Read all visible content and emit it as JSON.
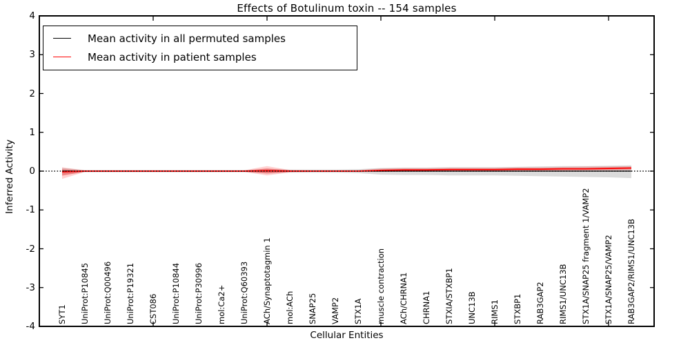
{
  "title": "Effects of Botulinum toxin -- 154 samples",
  "axes": {
    "ylabel": "Inferred Activity",
    "xlabel": "Cellular Entities"
  },
  "legend": {
    "items": [
      {
        "label": "Mean activity in all permuted samples",
        "color": "#000000"
      },
      {
        "label": "Mean activity in patient samples",
        "color": "#ff0000"
      }
    ]
  },
  "chart_data": {
    "type": "line",
    "title": "Effects of Botulinum toxin -- 154 samples",
    "xlabel": "Cellular Entities",
    "ylabel": "Inferred Activity",
    "ylim": [
      -4,
      4
    ],
    "yticks": [
      4,
      3,
      2,
      1,
      0,
      -1,
      -2,
      -3,
      -4
    ],
    "xtick_major_indices": [
      4,
      9,
      14,
      19,
      24
    ],
    "grid": false,
    "legend_position": "upper left",
    "categories": [
      "SYT1",
      "UniProt:P10845",
      "UniProt:Q00496",
      "UniProt:P19321",
      "CST086",
      "UniProt:P10844",
      "UniProt:P30996",
      "mol:Ca2+",
      "UniProt:Q60393",
      "ACh/Synaptotagmin 1",
      "mol:ACh",
      "SNAP25",
      "VAMP2",
      "STX1A",
      "muscle contraction",
      "ACh/CHRNA1",
      "CHRNA1",
      "STXIA/STXBP1",
      "UNC13B",
      "RIMS1",
      "STXBP1",
      "RAB3GAP2",
      "RIMS1/UNC13B",
      "STX1A/SNAP25 fragment 1/VAMP2",
      "STX1A/SNAP25/VAMP2",
      "RAB3GAP2/RIMS1/UNC13B"
    ],
    "series": [
      {
        "name": "Mean activity in all permuted samples",
        "color": "#000000",
        "width": 1.2,
        "values": [
          0,
          0,
          0,
          0,
          0,
          0,
          0,
          0,
          0,
          0,
          0,
          0,
          0,
          0,
          0,
          0,
          0,
          0,
          0,
          0,
          0,
          0,
          0,
          0,
          0,
          0
        ]
      },
      {
        "name": "Mean activity in patient samples",
        "color": "#ff0000",
        "width": 1.8,
        "values": [
          -0.02,
          0,
          0,
          0,
          0,
          0,
          0,
          0,
          0,
          0.01,
          0,
          0,
          0,
          0,
          0.02,
          0.03,
          0.03,
          0.04,
          0.04,
          0.04,
          0.05,
          0.05,
          0.06,
          0.06,
          0.07,
          0.08
        ]
      }
    ],
    "bands": [
      {
        "name": "permuted-samples-range",
        "color": "rgba(0,0,0,0.14)",
        "upper": [
          0.08,
          0.03,
          0.03,
          0.03,
          0.03,
          0.03,
          0.03,
          0.03,
          0.03,
          0.06,
          0.04,
          0.04,
          0.04,
          0.05,
          0.08,
          0.09,
          0.09,
          0.1,
          0.1,
          0.1,
          0.11,
          0.12,
          0.13,
          0.13,
          0.14,
          0.15
        ],
        "lower": [
          -0.1,
          -0.03,
          -0.03,
          -0.03,
          -0.03,
          -0.03,
          -0.03,
          -0.03,
          -0.03,
          -0.06,
          -0.04,
          -0.04,
          -0.04,
          -0.05,
          -0.09,
          -0.1,
          -0.1,
          -0.11,
          -0.11,
          -0.11,
          -0.12,
          -0.13,
          -0.14,
          -0.15,
          -0.16,
          -0.18
        ]
      },
      {
        "name": "patient-samples-range-outer",
        "color": "rgba(255,0,0,0.18)",
        "upper": [
          0.1,
          0.02,
          0.02,
          0.02,
          0.02,
          0.02,
          0.02,
          0.02,
          0.02,
          0.13,
          0.03,
          0.02,
          0.02,
          0.02,
          0.07,
          0.08,
          0.08,
          0.09,
          0.09,
          0.09,
          0.1,
          0.1,
          0.11,
          0.12,
          0.12,
          0.13
        ],
        "lower": [
          -0.2,
          -0.02,
          -0.02,
          -0.02,
          -0.02,
          -0.02,
          -0.02,
          -0.02,
          -0.02,
          -0.11,
          -0.03,
          -0.02,
          -0.02,
          -0.02,
          -0.02,
          -0.01,
          -0.01,
          0.0,
          0.0,
          0.0,
          0.01,
          0.01,
          0.01,
          0.02,
          0.02,
          0.03
        ]
      },
      {
        "name": "patient-samples-range-inner",
        "color": "rgba(255,0,0,0.28)",
        "upper": [
          0.05,
          0.01,
          0.01,
          0.01,
          0.01,
          0.01,
          0.01,
          0.01,
          0.01,
          0.07,
          0.02,
          0.01,
          0.01,
          0.01,
          0.04,
          0.05,
          0.05,
          0.06,
          0.06,
          0.06,
          0.07,
          0.07,
          0.08,
          0.08,
          0.09,
          0.1
        ],
        "lower": [
          -0.12,
          -0.01,
          -0.01,
          -0.01,
          -0.01,
          -0.01,
          -0.01,
          -0.01,
          -0.01,
          -0.06,
          -0.02,
          -0.01,
          -0.01,
          -0.01,
          -0.01,
          0.0,
          0.0,
          0.01,
          0.01,
          0.01,
          0.02,
          0.02,
          0.03,
          0.03,
          0.04,
          0.05
        ]
      }
    ],
    "zero_line": {
      "style": "dotted",
      "color": "#000000",
      "y": 0
    }
  }
}
